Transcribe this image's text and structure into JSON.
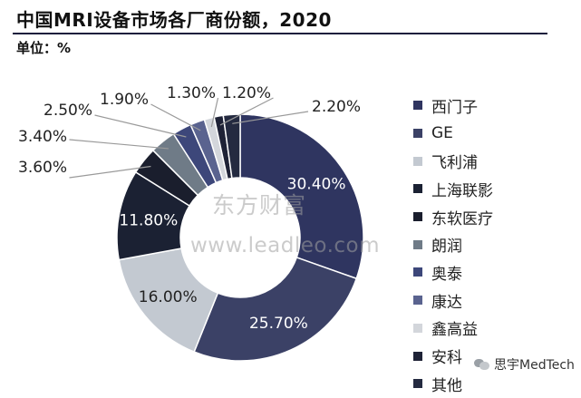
{
  "title": "中国MRI设备市场各厂商份额，2020",
  "unit_label": "单位：%",
  "watermark": {
    "cn": "东方财富",
    "url": "www.leadleo.com"
  },
  "brand": {
    "text": "思宇MedTech",
    "icon": "wechat-icon"
  },
  "chart_data": {
    "type": "pie",
    "donut": true,
    "legend_position": "right",
    "categories": [
      "西门子",
      "GE",
      "飞利浦",
      "上海联影",
      "东软医疗",
      "朗润",
      "奥泰",
      "康达",
      "鑫高益",
      "安科",
      "其他"
    ],
    "values": [
      30.4,
      25.7,
      16.0,
      11.8,
      3.6,
      3.4,
      2.5,
      1.9,
      1.3,
      1.2,
      2.2
    ],
    "labels": [
      "30.40%",
      "25.70%",
      "16.00%",
      "11.80%",
      "3.60%",
      "3.40%",
      "2.50%",
      "1.90%",
      "1.30%",
      "1.20%",
      "2.20%"
    ],
    "colors": [
      "#2f3560",
      "#3b4166",
      "#c3c9d1",
      "#1b2133",
      "#1a1e2d",
      "#6f7b87",
      "#3d477a",
      "#5a638f",
      "#d3d6db",
      "#1e2236",
      "#242a40"
    ]
  }
}
